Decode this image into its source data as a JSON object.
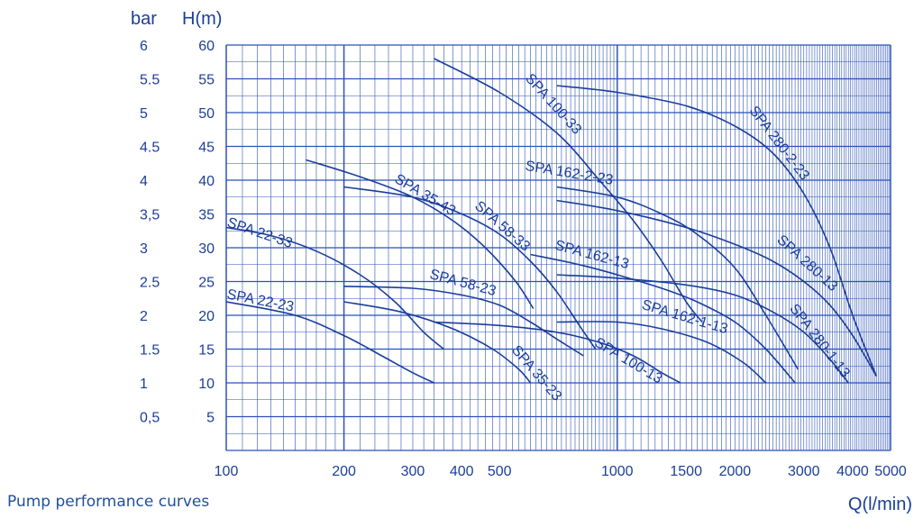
{
  "caption": "Pump performance curves",
  "chart_data": {
    "type": "line",
    "title": "",
    "xlabel": "Q(l/min)",
    "ylabel": "H(m)",
    "ylabel_secondary": "bar",
    "x_scale": "log",
    "xlim": [
      100,
      5000
    ],
    "ylim": [
      0,
      60
    ],
    "grid": true,
    "colors": {
      "line": "#1a3e9a",
      "grid": "#2b52b8",
      "text": "#1a3e9a",
      "caption": "#1f4f9c"
    },
    "x_ticks": [
      {
        "value": 100,
        "label": "100"
      },
      {
        "value": 200,
        "label": "200"
      },
      {
        "value": 300,
        "label": "300"
      },
      {
        "value": 400,
        "label": "400"
      },
      {
        "value": 500,
        "label": "500"
      },
      {
        "value": 1000,
        "label": "1000"
      },
      {
        "value": 1500,
        "label": "1500"
      },
      {
        "value": 2000,
        "label": "2000"
      },
      {
        "value": 3000,
        "label": "3000"
      },
      {
        "value": 4000,
        "label": "4000"
      },
      {
        "value": 5000,
        "label": "5000"
      }
    ],
    "y_ticks": [
      {
        "value": 5,
        "label": "5",
        "bar": "0,5"
      },
      {
        "value": 10,
        "label": "10",
        "bar": "1"
      },
      {
        "value": 15,
        "label": "15",
        "bar": "1.5"
      },
      {
        "value": 20,
        "label": "20",
        "bar": "2"
      },
      {
        "value": 25,
        "label": "25",
        "bar": "2.5"
      },
      {
        "value": 30,
        "label": "30",
        "bar": "3"
      },
      {
        "value": 35,
        "label": "35",
        "bar": "3,5"
      },
      {
        "value": 40,
        "label": "40",
        "bar": "4"
      },
      {
        "value": 45,
        "label": "45",
        "bar": "4.5"
      },
      {
        "value": 50,
        "label": "50",
        "bar": "5"
      },
      {
        "value": 55,
        "label": "55",
        "bar": "5.5"
      },
      {
        "value": 60,
        "label": "60",
        "bar": "6"
      }
    ],
    "series": [
      {
        "name": "SPA 22-23",
        "x": [
          100,
          150,
          200,
          250,
          300,
          340
        ],
        "y": [
          22,
          20,
          17,
          14,
          11.5,
          10
        ],
        "label_at": [
          100,
          22.5
        ]
      },
      {
        "name": "SPA 22-33",
        "x": [
          100,
          130,
          170,
          220,
          270,
          320,
          360
        ],
        "y": [
          33,
          31.8,
          29.5,
          26,
          22,
          17.5,
          15
        ],
        "label_at": [
          100,
          33.2
        ]
      },
      {
        "name": "SPA 35-23",
        "x": [
          200,
          280,
          380,
          480,
          560,
          600
        ],
        "y": [
          22,
          20.5,
          18,
          15,
          12,
          10
        ],
        "label_at": [
          535,
          14.8
        ]
      },
      {
        "name": "SPA 35-43",
        "x": [
          160,
          220,
          300,
          380,
          460,
          550,
          610
        ],
        "y": [
          43,
          40.5,
          37.5,
          34,
          30,
          25,
          21
        ],
        "label_at": [
          268,
          39.8
        ]
      },
      {
        "name": "SPA 58-23",
        "x": [
          200,
          300,
          400,
          500,
          600,
          700,
          820
        ],
        "y": [
          24.3,
          24,
          23,
          21.5,
          19,
          16.5,
          14
        ],
        "label_at": [
          330,
          25.5
        ]
      },
      {
        "name": "SPA 58-33",
        "x": [
          200,
          300,
          400,
          500,
          600,
          700,
          800,
          880
        ],
        "y": [
          39,
          37.5,
          35,
          32,
          28,
          23.5,
          18.5,
          15
        ],
        "label_at": [
          430,
          36
        ]
      },
      {
        "name": "SPA 100-13",
        "x": [
          340,
          500,
          700,
          900,
          1100,
          1300,
          1450
        ],
        "y": [
          19,
          18.5,
          17.5,
          16,
          14,
          11.5,
          10
        ],
        "label_at": [
          870,
          15.6
        ]
      },
      {
        "name": "SPA 100-33",
        "x": [
          340,
          500,
          700,
          900,
          1100,
          1300,
          1500,
          1650
        ],
        "y": [
          58,
          53,
          47,
          40,
          34,
          28,
          22,
          19
        ],
        "label_at": [
          580,
          55
        ]
      },
      {
        "name": "SPA 162-1-13",
        "x": [
          700,
          1000,
          1300,
          1700,
          2100,
          2400
        ],
        "y": [
          19,
          19,
          18,
          16,
          13,
          10
        ],
        "label_at": [
          1150,
          21
        ]
      },
      {
        "name": "SPA 162-13",
        "x": [
          600,
          800,
          1000,
          1300,
          1600,
          2000,
          2400,
          2850
        ],
        "y": [
          29,
          27.5,
          26,
          24,
          22,
          19,
          15,
          10
        ],
        "label_at": [
          690,
          29.8
        ]
      },
      {
        "name": "SPA 162-2-23",
        "x": [
          700,
          1000,
          1300,
          1600,
          2000,
          2400,
          2900
        ],
        "y": [
          39,
          37.5,
          35,
          32,
          27,
          20,
          12
        ],
        "label_at": [
          580,
          41.5
        ]
      },
      {
        "name": "SPA 280-1-13",
        "x": [
          700,
          1000,
          1500,
          2000,
          2500,
          3000,
          3500,
          3900
        ],
        "y": [
          26,
          25.5,
          24.5,
          23,
          20.5,
          17.5,
          13.5,
          10
        ],
        "label_at": [
          2750,
          21
        ]
      },
      {
        "name": "SPA 280-13",
        "x": [
          700,
          1000,
          1500,
          2000,
          2500,
          3000,
          3500,
          4000,
          4600
        ],
        "y": [
          37,
          35.5,
          33,
          30.5,
          28,
          25,
          21.5,
          17,
          11
        ],
        "label_at": [
          2550,
          31
        ]
      },
      {
        "name": "SPA 280-2-23",
        "x": [
          700,
          1000,
          1500,
          2000,
          2500,
          3000,
          3500,
          4000,
          4600
        ],
        "y": [
          54,
          53,
          51,
          48,
          44,
          38,
          30,
          20,
          11
        ],
        "label_at": [
          2170,
          50.3
        ]
      }
    ]
  }
}
